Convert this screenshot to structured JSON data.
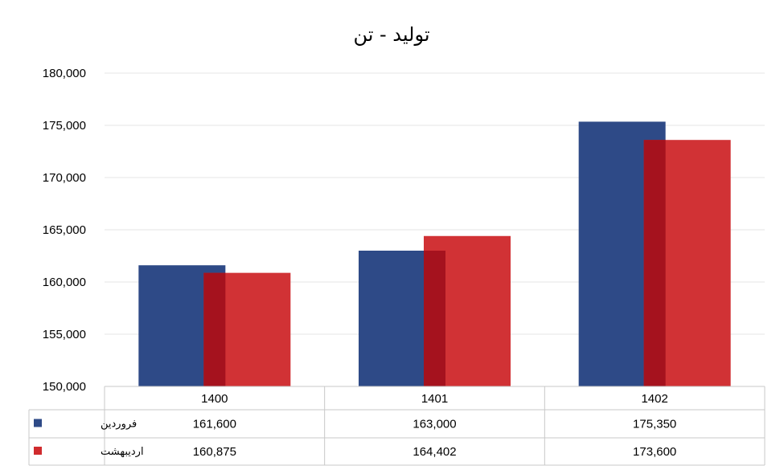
{
  "chart_data": {
    "type": "bar",
    "title": "تولید - تن",
    "categories": [
      "1400",
      "1401",
      "1402"
    ],
    "series": [
      {
        "name": "فروردین",
        "values": [
          161600,
          163000,
          175350
        ],
        "color": "#2E4A87"
      },
      {
        "name": "اردیبهشت",
        "values": [
          160875,
          164402,
          173600
        ],
        "color": "#D02B2E"
      }
    ],
    "ylim": [
      150000,
      180000
    ],
    "yticks": [
      "150,000",
      "155,000",
      "160,000",
      "165,000",
      "170,000",
      "175,000",
      "180,000"
    ],
    "value_labels": [
      [
        "161,600",
        "163,000",
        "175,350"
      ],
      [
        "160,875",
        "164,402",
        "173,600"
      ]
    ],
    "grid": true,
    "legend": "data-table",
    "overlap_color": "#A5121E"
  }
}
